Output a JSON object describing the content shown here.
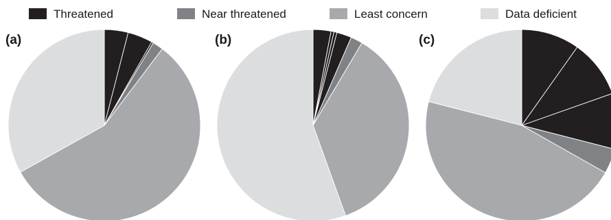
{
  "chart_data": [
    {
      "type": "pie",
      "panel_label": "(a)",
      "slices": [
        {
          "category": "Threatened",
          "value": 4.0
        },
        {
          "category": "Threatened",
          "value": 4.2
        },
        {
          "category": "Threatened",
          "value": 0.3
        },
        {
          "category": "Near threatened",
          "value": 1.8
        },
        {
          "category": "Least concern",
          "value": 56.6
        },
        {
          "category": "Data deficient",
          "value": 33.1
        }
      ]
    },
    {
      "type": "pie",
      "panel_label": "(b)",
      "slices": [
        {
          "category": "Threatened",
          "value": 3.0
        },
        {
          "category": "Threatened",
          "value": 0.5
        },
        {
          "category": "Threatened",
          "value": 0.5
        },
        {
          "category": "Threatened",
          "value": 2.5
        },
        {
          "category": "Near threatened",
          "value": 2.0
        },
        {
          "category": "Least concern",
          "value": 36.0
        },
        {
          "category": "Data deficient",
          "value": 55.5
        }
      ]
    },
    {
      "type": "pie",
      "panel_label": "(c)",
      "slices": [
        {
          "category": "Threatened",
          "value": 9.8
        },
        {
          "category": "Threatened",
          "value": 9.8
        },
        {
          "category": "Threatened",
          "value": 9.4
        },
        {
          "category": "Near threatened",
          "value": 4.2
        },
        {
          "category": "Least concern",
          "value": 45.8
        },
        {
          "category": "Data deficient",
          "value": 21.0
        }
      ]
    }
  ],
  "legend": [
    {
      "label": "Threatened",
      "color": "#231f20"
    },
    {
      "label": "Near threatened",
      "color": "#808285"
    },
    {
      "label": "Least concern",
      "color": "#a7a9ac"
    },
    {
      "label": "Data deficient",
      "color": "#dcdddf"
    }
  ]
}
